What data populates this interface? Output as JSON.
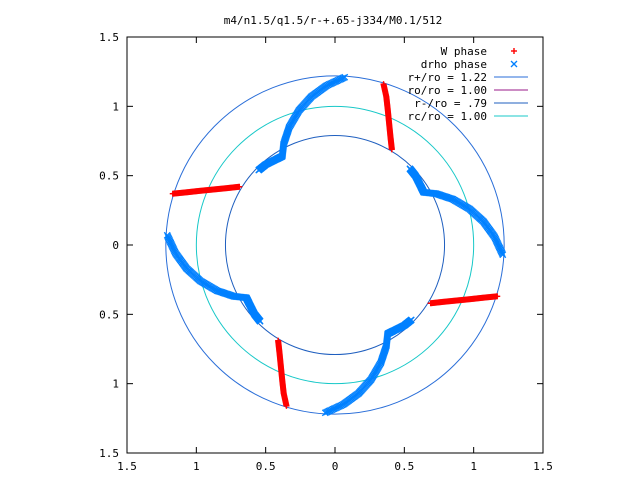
{
  "chart_data": {
    "type": "scatter",
    "title": "m4/n1.5/q1.5/r-+.65-j334/M0.1/512",
    "xlim": [
      -1.5,
      1.5
    ],
    "ylim": [
      -1.5,
      1.5
    ],
    "x_ticks": [
      -1.5,
      -1,
      -0.5,
      0,
      0.5,
      1,
      1.5
    ],
    "y_ticks": [
      -1.5,
      -1,
      -0.5,
      0,
      0.5,
      1,
      1.5
    ],
    "x_tick_labels": [
      "1.5",
      "1",
      "0.5",
      "0",
      "0.5",
      "1",
      "1.5"
    ],
    "y_tick_labels": [
      "1.5",
      "1",
      "0.5",
      "0",
      "0.5",
      "1",
      "1.5"
    ],
    "legend_position": "top-right",
    "legend": [
      {
        "label": "W phase",
        "symbol": "+",
        "color": "#ff0000"
      },
      {
        "label": "drho phase",
        "symbol": "x",
        "color": "#0080ff"
      },
      {
        "label": "r+/ro = 1.22",
        "symbol": "line",
        "color": "#2a6ed8"
      },
      {
        "label": "ro/ro = 1.00",
        "symbol": "line",
        "color": "#9a1a8a"
      },
      {
        "label": "r-/ro = .79",
        "symbol": "line",
        "color": "#1f5fbf"
      },
      {
        "label": "rc/ro = 1.00",
        "symbol": "line",
        "color": "#18c8c8"
      }
    ],
    "circles": [
      {
        "name": "r+/ro",
        "r": 1.22,
        "color": "#2a6ed8"
      },
      {
        "name": "r-/ro",
        "r": 0.79,
        "color": "#1f5fbf"
      },
      {
        "name": "rc/ro",
        "r": 1.0,
        "color": "#18c8c8"
      }
    ],
    "series": [
      {
        "name": "W phase",
        "marker": "+",
        "color": "#ff0000",
        "segments": [
          [
            [
              0.35,
              1.16
            ],
            [
              0.37,
              1.07
            ],
            [
              0.38,
              0.98
            ],
            [
              0.39,
              0.88
            ],
            [
              0.4,
              0.78
            ],
            [
              0.41,
              0.69
            ]
          ],
          [
            [
              -1.17,
              0.37
            ],
            [
              -1.07,
              0.38
            ],
            [
              -0.98,
              0.39
            ],
            [
              -0.88,
              0.4
            ],
            [
              -0.78,
              0.41
            ],
            [
              -0.69,
              0.42
            ]
          ],
          [
            [
              -0.35,
              -1.16
            ],
            [
              -0.37,
              -1.07
            ],
            [
              -0.38,
              -0.98
            ],
            [
              -0.39,
              -0.88
            ],
            [
              -0.4,
              -0.78
            ],
            [
              -0.41,
              -0.69
            ]
          ],
          [
            [
              1.17,
              -0.37
            ],
            [
              1.07,
              -0.38
            ],
            [
              0.98,
              -0.39
            ],
            [
              0.88,
              -0.4
            ],
            [
              0.78,
              -0.41
            ],
            [
              0.69,
              -0.42
            ]
          ]
        ]
      },
      {
        "name": "drho phase",
        "marker": "x",
        "color": "#0080ff",
        "segments": [
          [
            [
              0.07,
              1.21
            ],
            [
              -0.06,
              1.15
            ],
            [
              -0.17,
              1.07
            ],
            [
              -0.26,
              0.97
            ],
            [
              -0.33,
              0.85
            ],
            [
              -0.37,
              0.73
            ],
            [
              -0.38,
              0.64
            ],
            [
              -0.42,
              0.62
            ],
            [
              -0.5,
              0.58
            ],
            [
              -0.55,
              0.54
            ]
          ],
          [
            [
              -1.21,
              0.07
            ],
            [
              -1.15,
              -0.06
            ],
            [
              -1.07,
              -0.17
            ],
            [
              -0.97,
              -0.26
            ],
            [
              -0.85,
              -0.33
            ],
            [
              -0.73,
              -0.37
            ],
            [
              -0.64,
              -0.38
            ],
            [
              -0.62,
              -0.42
            ],
            [
              -0.58,
              -0.5
            ],
            [
              -0.54,
              -0.55
            ]
          ],
          [
            [
              -0.07,
              -1.21
            ],
            [
              0.06,
              -1.15
            ],
            [
              0.17,
              -1.07
            ],
            [
              0.26,
              -0.97
            ],
            [
              0.33,
              -0.85
            ],
            [
              0.37,
              -0.73
            ],
            [
              0.38,
              -0.64
            ],
            [
              0.42,
              -0.62
            ],
            [
              0.5,
              -0.58
            ],
            [
              0.55,
              -0.54
            ]
          ],
          [
            [
              1.21,
              -0.07
            ],
            [
              1.15,
              0.06
            ],
            [
              1.07,
              0.17
            ],
            [
              0.97,
              0.26
            ],
            [
              0.85,
              0.33
            ],
            [
              0.73,
              0.37
            ],
            [
              0.64,
              0.38
            ],
            [
              0.62,
              0.42
            ],
            [
              0.58,
              0.5
            ],
            [
              0.54,
              0.55
            ]
          ]
        ]
      }
    ]
  }
}
